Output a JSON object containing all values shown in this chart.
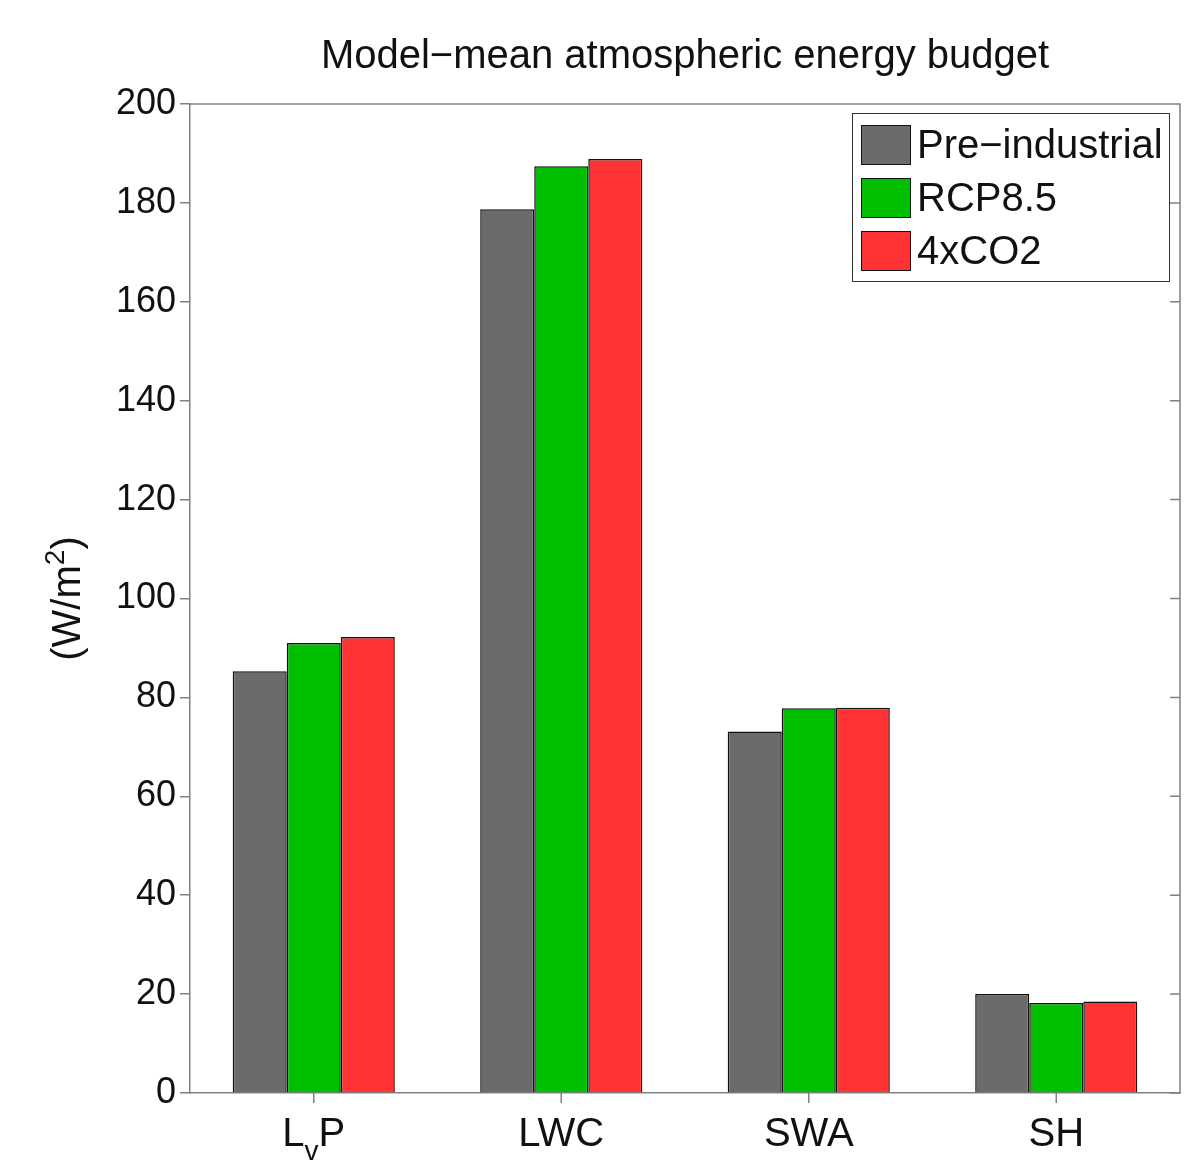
{
  "chart_data": {
    "type": "bar",
    "title": "Model−mean atmospheric energy budget",
    "ylabel": "(W/m$^{2}$)",
    "categories": [
      "L$_{v}$P",
      "LWC",
      "SWA",
      "SH"
    ],
    "series": [
      {
        "name": "Pre−industrial",
        "color": "#6b6b6b",
        "values": [
          85.3,
          178.7,
          73.1,
          20.0
        ]
      },
      {
        "name": "RCP8.5",
        "color": "#00bf00",
        "values": [
          91.0,
          187.4,
          77.8,
          18.2
        ]
      },
      {
        "name": "4xCO2",
        "color": "#ff3333",
        "values": [
          92.2,
          188.9,
          77.9,
          18.5
        ]
      }
    ],
    "ylim": [
      0,
      200
    ],
    "yticks": [
      0,
      20,
      40,
      60,
      80,
      100,
      120,
      140,
      160,
      180,
      200
    ],
    "grid": false,
    "legend": "top right"
  }
}
